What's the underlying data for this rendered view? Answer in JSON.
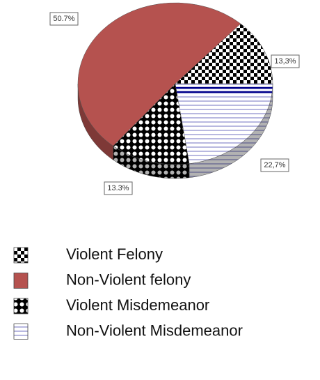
{
  "chart_data": {
    "type": "pie",
    "categories": [
      "Violent Felony",
      "Non-Violent felony",
      "Violent Misdemeanor",
      "Non-Violent Misdemeanor"
    ],
    "values": [
      13.3,
      50.7,
      13.3,
      22.7
    ],
    "value_labels": [
      "13,3%",
      "50.7%",
      "13.3%",
      "22,7%"
    ],
    "colors": [
      "#000000",
      "#b5524f",
      "#000000",
      "#00008b"
    ],
    "patterns": [
      "checker",
      "solid",
      "diamond",
      "stripes"
    ]
  }
}
